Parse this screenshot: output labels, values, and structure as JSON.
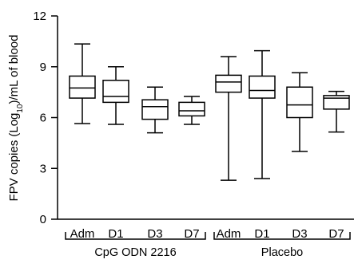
{
  "chart_data": {
    "type": "boxplot",
    "ylabel": "FPV copies (Log10)/mL of blood",
    "ylabel_parts": {
      "before": "FPV copies (Log",
      "subscript": "10",
      "after": ")/mL of blood"
    },
    "ylim": [
      0,
      12
    ],
    "yticks": [
      0,
      3,
      6,
      9,
      12
    ],
    "grid": false,
    "groups": [
      {
        "label": "CpG ODN 2216",
        "categories": [
          "Adm",
          "D1",
          "D3",
          "D7"
        ]
      },
      {
        "label": "Placebo",
        "categories": [
          "Adm",
          "D1",
          "D3",
          "D7"
        ]
      }
    ],
    "categories": [
      "Adm",
      "D1",
      "D3",
      "D7",
      "Adm",
      "D1",
      "D3",
      "D7"
    ],
    "boxes": [
      {
        "group": "CpG ODN 2216",
        "category": "Adm",
        "min": 5.65,
        "q1": 7.15,
        "median": 7.75,
        "q3": 8.45,
        "max": 10.35
      },
      {
        "group": "CpG ODN 2216",
        "category": "D1",
        "min": 5.6,
        "q1": 6.9,
        "median": 7.25,
        "q3": 8.2,
        "max": 9.0
      },
      {
        "group": "CpG ODN 2216",
        "category": "D3",
        "min": 5.1,
        "q1": 5.9,
        "median": 6.65,
        "q3": 7.05,
        "max": 7.8
      },
      {
        "group": "CpG ODN 2216",
        "category": "D7",
        "min": 5.6,
        "q1": 6.1,
        "median": 6.4,
        "q3": 6.9,
        "max": 7.25
      },
      {
        "group": "Placebo",
        "category": "Adm",
        "min": 2.3,
        "q1": 7.5,
        "median": 8.1,
        "q3": 8.5,
        "max": 9.6
      },
      {
        "group": "Placebo",
        "category": "D1",
        "min": 2.4,
        "q1": 7.15,
        "median": 7.6,
        "q3": 8.45,
        "max": 9.95
      },
      {
        "group": "Placebo",
        "category": "D3",
        "min": 4.0,
        "q1": 6.0,
        "median": 6.75,
        "q3": 7.8,
        "max": 8.65
      },
      {
        "group": "Placebo",
        "category": "D7",
        "min": 5.15,
        "q1": 6.5,
        "median": 7.15,
        "q3": 7.3,
        "max": 7.55
      }
    ]
  }
}
